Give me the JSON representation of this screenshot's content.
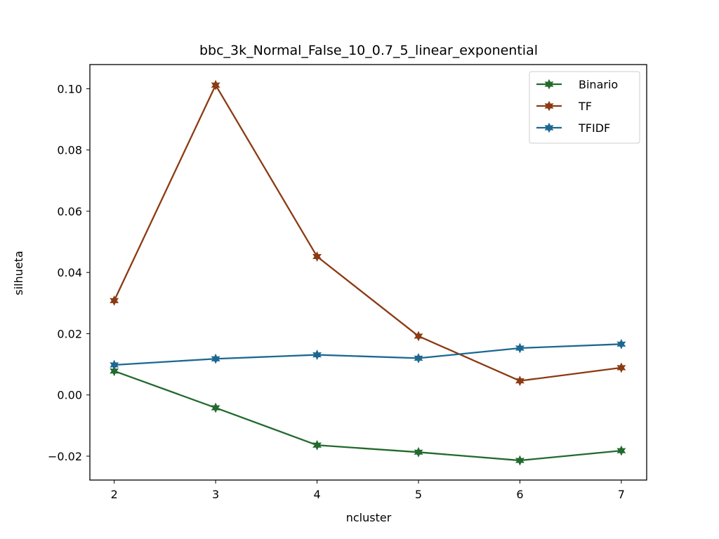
{
  "chart_data": {
    "type": "line",
    "title": "bbc_3k_Normal_False_10_0.7_5_linear_exponential",
    "xlabel": "ncluster",
    "ylabel": "silhueta",
    "x": [
      2,
      3,
      4,
      5,
      6,
      7
    ],
    "xlim": [
      1.76,
      7.25
    ],
    "ylim": [
      -0.0278,
      0.1079
    ],
    "xticks": [
      2,
      3,
      4,
      5,
      6,
      7
    ],
    "xtick_labels": [
      "2",
      "3",
      "4",
      "5",
      "6",
      "7"
    ],
    "yticks": [
      -0.02,
      0.0,
      0.02,
      0.04,
      0.06,
      0.08,
      0.1
    ],
    "ytick_labels": [
      "−0.02",
      "0.00",
      "0.02",
      "0.04",
      "0.06",
      "0.08",
      "0.10"
    ],
    "grid": false,
    "legend_position": "top-right",
    "series": [
      {
        "name": "Binario",
        "color": "#226a2e",
        "marker": "star",
        "values": [
          0.0078,
          -0.0042,
          -0.0164,
          -0.0187,
          -0.0214,
          -0.0182
        ]
      },
      {
        "name": "TF",
        "color": "#8b3a12",
        "marker": "star",
        "values": [
          0.0308,
          0.1012,
          0.0452,
          0.0192,
          0.0046,
          0.0089
        ]
      },
      {
        "name": "TFIDF",
        "color": "#1c6891",
        "marker": "star",
        "values": [
          0.0098,
          0.0118,
          0.0131,
          0.012,
          0.0153,
          0.0166
        ]
      }
    ]
  }
}
